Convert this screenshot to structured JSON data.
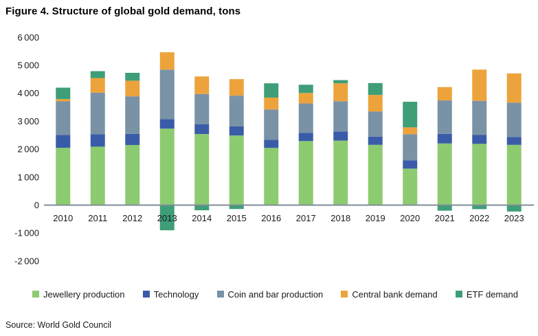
{
  "title": "Figure 4. Structure of global gold demand, tons",
  "source": "Source: World Gold Council",
  "chart_data": {
    "type": "bar",
    "stacked": true,
    "title": "Figure 4. Structure of global gold demand, tons",
    "xlabel": "",
    "ylabel": "",
    "ylim": [
      -2000,
      6000
    ],
    "ytick_step": 1000,
    "grid": false,
    "legend_position": "bottom",
    "axis_color": "#7f8e98",
    "categories": [
      "2010",
      "2011",
      "2012",
      "2013",
      "2014",
      "2015",
      "2016",
      "2017",
      "2018",
      "2019",
      "2020",
      "2021",
      "2022",
      "2023"
    ],
    "series": [
      {
        "name": "Jewellery production",
        "color": "#8dcb70",
        "values": [
          2050,
          2090,
          2150,
          2735,
          2540,
          2490,
          2045,
          2290,
          2305,
          2155,
          1305,
          2205,
          2190,
          2155
        ]
      },
      {
        "name": "Technology",
        "color": "#3a5ca8",
        "values": [
          460,
          440,
          395,
          340,
          355,
          325,
          295,
          295,
          330,
          295,
          295,
          345,
          325,
          280
        ]
      },
      {
        "name": "Coin and bar production",
        "color": "#7a92a5",
        "values": [
          1200,
          1490,
          1345,
          1770,
          1080,
          1100,
          1080,
          1050,
          1080,
          900,
          935,
          1195,
          1215,
          1230
        ]
      },
      {
        "name": "Central bank demand",
        "color": "#eda33b",
        "values": [
          80,
          525,
          560,
          620,
          625,
          590,
          425,
          375,
          640,
          590,
          245,
          475,
          1115,
          1045
        ]
      },
      {
        "name": "ETF demand",
        "color": "#3e9e78",
        "values": [
          410,
          245,
          280,
          -900,
          -185,
          -140,
          510,
          295,
          115,
          425,
          915,
          -200,
          -145,
          -230
        ]
      }
    ]
  }
}
